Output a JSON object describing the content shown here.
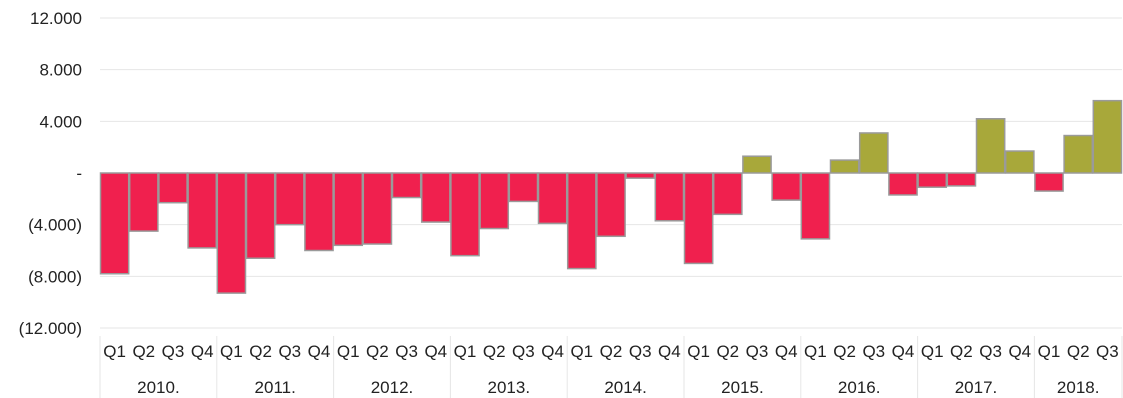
{
  "chart_data": {
    "type": "bar",
    "y_tick_labels": [
      "12.000",
      "8.000",
      "4.000",
      "-",
      "(4.000)",
      "(8.000)",
      "(12.000)"
    ],
    "y_tick_values": [
      12000,
      8000,
      4000,
      0,
      -4000,
      -8000,
      -12000
    ],
    "ylim": [
      -12000,
      12000
    ],
    "grid": true,
    "years": [
      {
        "label": "2010.",
        "quarters": 4
      },
      {
        "label": "2011.",
        "quarters": 4
      },
      {
        "label": "2012.",
        "quarters": 4
      },
      {
        "label": "2013.",
        "quarters": 4
      },
      {
        "label": "2014.",
        "quarters": 4
      },
      {
        "label": "2015.",
        "quarters": 4
      },
      {
        "label": "2016.",
        "quarters": 4
      },
      {
        "label": "2017.",
        "quarters": 4
      },
      {
        "label": "2018.",
        "quarters": 3
      }
    ],
    "categories": [
      "Q1",
      "Q2",
      "Q3",
      "Q4",
      "Q1",
      "Q2",
      "Q3",
      "Q4",
      "Q1",
      "Q2",
      "Q3",
      "Q4",
      "Q1",
      "Q2",
      "Q3",
      "Q4",
      "Q1",
      "Q2",
      "Q3",
      "Q4",
      "Q1",
      "Q2",
      "Q3",
      "Q4",
      "Q1",
      "Q2",
      "Q3",
      "Q4",
      "Q1",
      "Q2",
      "Q3",
      "Q4",
      "Q1",
      "Q2",
      "Q3"
    ],
    "values": [
      -7800,
      -4500,
      -2300,
      -5800,
      -9300,
      -6600,
      -4000,
      -6000,
      -5600,
      -5500,
      -1900,
      -3800,
      -6400,
      -4300,
      -2200,
      -3900,
      -7400,
      -4900,
      -400,
      -3700,
      -7000,
      -3200,
      1300,
      -2100,
      -5100,
      1000,
      3100,
      -1700,
      -1100,
      -1000,
      4200,
      1700,
      -1400,
      2900,
      5600
    ],
    "colors": {
      "negative": "#f0204e",
      "positive": "#a8a83a",
      "bar_stroke": "#9a9a9a",
      "grid": "#e6e6e6"
    }
  }
}
